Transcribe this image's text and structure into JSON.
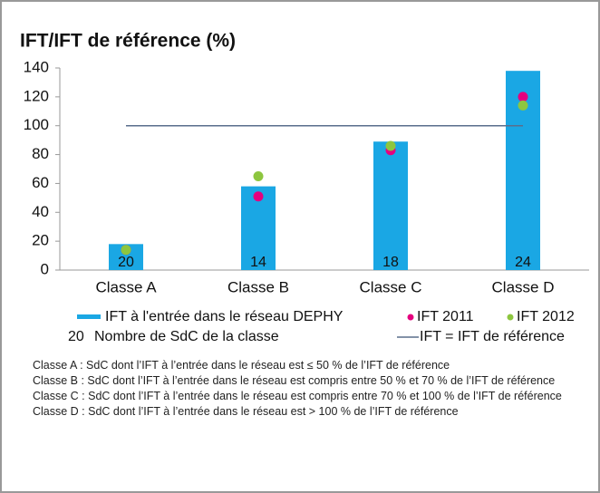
{
  "chart_data": {
    "type": "bar",
    "title": "IFT/IFT de référence (%)",
    "categories": [
      "Classe A",
      "Classe B",
      "Classe C",
      "Classe D"
    ],
    "series": [
      {
        "name": "IFT à l'entrée dans le réseau DEPHY",
        "type": "bar",
        "color": "#1aa7e4",
        "values": [
          18,
          58,
          89,
          138
        ]
      },
      {
        "name": "IFT 2011",
        "type": "scatter",
        "color": "#e5007e",
        "values": [
          14,
          51,
          83,
          120
        ]
      },
      {
        "name": "IFT 2012",
        "type": "scatter",
        "color": "#8dc63f",
        "values": [
          14,
          65,
          86,
          114
        ]
      }
    ],
    "class_counts": [
      20,
      14,
      18,
      24
    ],
    "count_legend": {
      "sample": "20",
      "label": "Nombre de  SdC de la classe"
    },
    "reference": {
      "name": "IFT = IFT de référence",
      "value": 100,
      "color": "#5a6e8c"
    },
    "ylim": [
      0,
      140
    ],
    "yticks": [
      0,
      20,
      40,
      60,
      80,
      100,
      120,
      140
    ],
    "notes": [
      "Classe A : SdC dont l’IFT à l’entrée dans le réseau est ≤ 50 % de l’IFT de référence",
      "Classe B : SdC dont l’IFT à l’entrée dans le réseau est compris entre 50 % et 70 % de l’IFT de référence",
      "Classe C : SdC dont l’IFT à l’entrée dans le réseau est compris entre 70 % et 100 % de l’IFT de référence",
      "Classe D : SdC dont l’IFT à l’entrée dans le réseau est > 100 % de l’IFT de référence"
    ]
  }
}
